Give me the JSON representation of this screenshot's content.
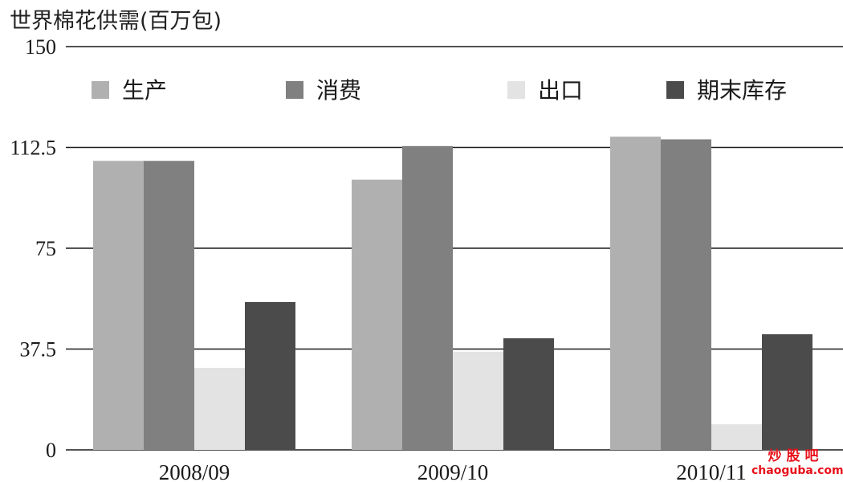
{
  "chart_data": {
    "type": "bar",
    "title": "世界棉花供需(百万包)",
    "categories": [
      "2008/09",
      "2009/10",
      "2010/11"
    ],
    "series": [
      {
        "name": "生产",
        "values": [
          107.5,
          100.5,
          116.5
        ],
        "color": "#b0b0b0"
      },
      {
        "name": "消费",
        "values": [
          107.5,
          113,
          115.5
        ],
        "color": "#808080"
      },
      {
        "name": "出口",
        "values": [
          30.5,
          36.5,
          9.5
        ],
        "color": "#e3e3e3"
      },
      {
        "name": "期末库存",
        "values": [
          55,
          41.5,
          43
        ],
        "color": "#4b4b4b"
      }
    ],
    "ylim": [
      0,
      150
    ],
    "yticks": [
      0,
      37.5,
      75,
      112.5,
      150
    ],
    "ytick_labels": [
      "0",
      "37.5",
      "75",
      "112.5",
      "150"
    ],
    "grid": true,
    "legend_position": "top"
  },
  "watermark": {
    "cn": "炒股吧",
    "en": "chaoguba.com"
  }
}
